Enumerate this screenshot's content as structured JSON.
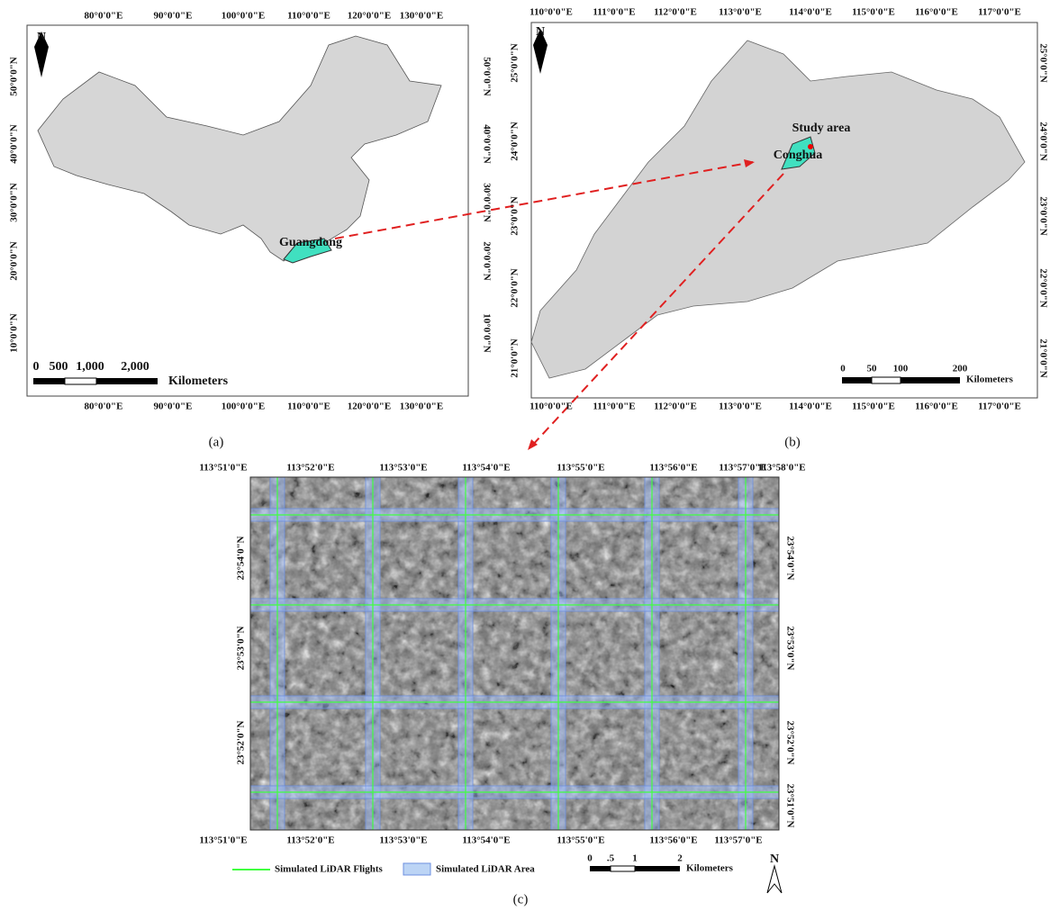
{
  "panels": [
    {
      "caption": "(a)",
      "north": "N",
      "top_labels": [
        "80°0'0\"E",
        "90°0'0\"E",
        "100°0'0\"E",
        "110°0'0\"E",
        "120°0'0\"E",
        "130°0'0\"E"
      ],
      "bottom_labels": [
        "80°0'0\"E",
        "90°0'0\"E",
        "100°0'0\"E",
        "110°0'0\"E",
        "120°0'0\"E",
        "130°0'0\"E"
      ],
      "left_labels": [
        "50°0'0\"N",
        "40°0'0\"N",
        "30°0'0\"N",
        "20°0'0\"N",
        "10°0'0\"N"
      ],
      "right_labels": [
        "50°0'0\"N",
        "40°0'0\"N",
        "30°0'0\"N",
        "20°0'0\"N",
        "10°0'0\"N"
      ],
      "scale_labels": [
        "0",
        "500",
        "1,000",
        "2,000"
      ],
      "scale_unit": "Kilometers",
      "place_labels": [
        "Guangdong"
      ]
    },
    {
      "caption": "(b)",
      "north": "N",
      "top_labels": [
        "110°0'0\"E",
        "111°0'0\"E",
        "112°0'0\"E",
        "113°0'0\"E",
        "114°0'0\"E",
        "115°0'0\"E",
        "116°0'0\"E",
        "117°0'0\"E"
      ],
      "bottom_labels": [
        "110°0'0\"E",
        "111°0'0\"E",
        "112°0'0\"E",
        "113°0'0\"E",
        "114°0'0\"E",
        "115°0'0\"E",
        "116°0'0\"E",
        "117°0'0\"E"
      ],
      "left_labels": [
        "25°0'0\"N",
        "24°0'0\"N",
        "23°0'0\"N",
        "22°0'0\"N",
        "21°0'0\"N"
      ],
      "right_labels": [
        "25°0'0\"N",
        "24°0'0\"N",
        "23°0'0\"N",
        "22°0'0\"N",
        "21°0'0\"N"
      ],
      "scale_labels": [
        "0",
        "50",
        "100",
        "200"
      ],
      "scale_unit": "Kilometers",
      "place_labels": [
        "Study area",
        "Conghua"
      ]
    },
    {
      "caption": "(c)",
      "north": "N",
      "top_labels": [
        "113°51'0\"E",
        "113°52'0\"E",
        "113°53'0\"E",
        "113°54'0\"E",
        "113°55'0\"E",
        "113°56'0\"E",
        "113°57'0\"E",
        "113°58'0\"E"
      ],
      "bottom_labels": [
        "113°51'0\"E",
        "113°52'0\"E",
        "113°53'0\"E",
        "113°54'0\"E",
        "113°55'0\"E",
        "113°56'0\"E",
        "113°57'0\"E"
      ],
      "left_labels": [
        "23°54'0\"N",
        "23°53'0\"N",
        "23°52'0\"N"
      ],
      "right_labels": [
        "23°54'0\"N",
        "23°53'0\"N",
        "23°52'0\"N",
        "23°51'0\"N"
      ],
      "scale_labels": [
        "0",
        ".5",
        "1",
        "2"
      ],
      "scale_unit": "Kilometers",
      "legend": [
        "Simulated LiDAR Flights",
        "Simulated LiDAR Area"
      ]
    }
  ]
}
